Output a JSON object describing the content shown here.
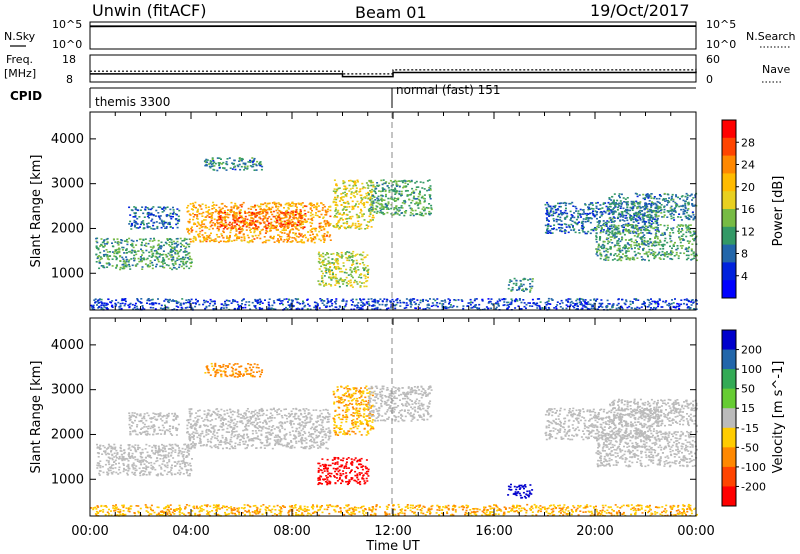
{
  "header": {
    "station": "Unwin (fitACF)",
    "beam": "Beam 01",
    "date": "19/Oct/2017"
  },
  "nsky": {
    "label": "N.Sky",
    "right_label": "N.Search",
    "left_ticks": [
      "10^5",
      "10^0"
    ],
    "right_ticks": [
      "10^5",
      "10^0"
    ]
  },
  "freq": {
    "label_line1": "Freq.",
    "label_line2": "[MHz]",
    "left_ticks": [
      "18",
      "8"
    ],
    "right_ticks": [
      "60",
      "0"
    ],
    "right_label": "Nave"
  },
  "cpid": {
    "label": "CPID",
    "segments": [
      {
        "name": "themis 3300",
        "start_hr": 0,
        "end_hr": 12
      },
      {
        "name": "normal (fast) 151",
        "start_hr": 12,
        "end_hr": 24
      }
    ]
  },
  "time_axis": {
    "ticks": [
      "00:00",
      "04:00",
      "08:00",
      "12:00",
      "16:00",
      "20:00",
      "00:00"
    ],
    "label": "Time UT"
  },
  "power_panel": {
    "ylabel": "Slant Range [km]",
    "yticks": [
      "4000",
      "3000",
      "2000",
      "1000"
    ],
    "colorbar_label": "Power [dB]",
    "colorbar_ticks": [
      "28",
      "24",
      "20",
      "16",
      "12",
      "8",
      "4"
    ],
    "colorbar_colors": [
      "#ff0000",
      "#ff4400",
      "#ff8800",
      "#ffbb00",
      "#e8d020",
      "#77bb44",
      "#339966",
      "#2266aa",
      "#0022dd",
      "#0000ff"
    ]
  },
  "velocity_panel": {
    "ylabel": "Slant Range [km]",
    "yticks": [
      "4000",
      "3000",
      "2000",
      "1000"
    ],
    "colorbar_label": "Velocity [m s^-1]",
    "colorbar_ticks": [
      "200",
      "100",
      "50",
      "15",
      "-15",
      "-50",
      "-100",
      "-200"
    ],
    "colorbar_colors": [
      "#0000cc",
      "#2266aa",
      "#33aa55",
      "#66cc33",
      "#bbbbbb",
      "#ffcc00",
      "#ff8800",
      "#ff4400",
      "#ff0000"
    ]
  },
  "chart_data": [
    {
      "type": "line",
      "title": "N.Sky",
      "x": [
        0,
        12,
        24
      ],
      "series": [
        {
          "name": "N.Sky",
          "values": [
            0.9,
            1.0,
            0.95
          ]
        }
      ],
      "ylim": [
        0,
        5
      ]
    },
    {
      "type": "line",
      "title": "Freq.",
      "x": [
        0,
        10,
        12,
        24
      ],
      "series": [
        {
          "name": "Freq.",
          "values": [
            11,
            10,
            11.5,
            12
          ]
        },
        {
          "name": "Nave",
          "values": [
            12,
            11,
            12.5,
            13
          ]
        }
      ],
      "ylim": [
        8,
        18
      ]
    },
    {
      "type": "heatmap",
      "title": "Power [dB]",
      "xlabel": "Time UT",
      "ylabel": "Slant Range [km]",
      "xlim": [
        0,
        24
      ],
      "ylim": [
        180,
        4600
      ],
      "patches": [
        {
          "t0": 0.2,
          "t1": 4.0,
          "r0": 1100,
          "r1": 1800,
          "value": 12
        },
        {
          "t0": 1.5,
          "t1": 3.5,
          "r0": 2000,
          "r1": 2500,
          "value": 8
        },
        {
          "t0": 3.8,
          "t1": 9.5,
          "r0": 1700,
          "r1": 2600,
          "value": 22
        },
        {
          "t0": 5.0,
          "t1": 8.5,
          "r0": 2000,
          "r1": 2400,
          "value": 26
        },
        {
          "t0": 4.5,
          "t1": 6.8,
          "r0": 3300,
          "r1": 3600,
          "value": 10
        },
        {
          "t0": 9.6,
          "t1": 11.2,
          "r0": 2000,
          "r1": 3100,
          "value": 18
        },
        {
          "t0": 9.0,
          "t1": 11.0,
          "r0": 700,
          "r1": 1500,
          "value": 16
        },
        {
          "t0": 11.0,
          "t1": 13.5,
          "r0": 2300,
          "r1": 3100,
          "value": 12
        },
        {
          "t0": 16.5,
          "t1": 17.5,
          "r0": 600,
          "r1": 900,
          "value": 10
        },
        {
          "t0": 18.0,
          "t1": 22.5,
          "r0": 1900,
          "r1": 2600,
          "value": 8
        },
        {
          "t0": 20.0,
          "t1": 24.0,
          "r0": 1300,
          "r1": 2100,
          "value": 12
        },
        {
          "t0": 20.5,
          "t1": 24.0,
          "r0": 2200,
          "r1": 2800,
          "value": 10
        },
        {
          "t0": 0.0,
          "t1": 24.0,
          "r0": 200,
          "r1": 450,
          "value": 6
        }
      ]
    },
    {
      "type": "heatmap",
      "title": "Velocity [m s^-1]",
      "xlabel": "Time UT",
      "ylabel": "Slant Range [km]",
      "xlim": [
        0,
        24
      ],
      "ylim": [
        180,
        4600
      ],
      "patches": [
        {
          "t0": 0.2,
          "t1": 4.0,
          "r0": 1100,
          "r1": 1800,
          "value": 0
        },
        {
          "t0": 1.5,
          "t1": 3.5,
          "r0": 2000,
          "r1": 2500,
          "value": 0
        },
        {
          "t0": 3.8,
          "t1": 9.5,
          "r0": 1700,
          "r1": 2600,
          "value": 0
        },
        {
          "t0": 4.5,
          "t1": 6.8,
          "r0": 3300,
          "r1": 3600,
          "value": -40
        },
        {
          "t0": 9.6,
          "t1": 11.2,
          "r0": 2000,
          "r1": 3100,
          "value": -30
        },
        {
          "t0": 9.0,
          "t1": 11.0,
          "r0": 900,
          "r1": 1500,
          "value": -200
        },
        {
          "t0": 11.0,
          "t1": 13.5,
          "r0": 2300,
          "r1": 3100,
          "value": -5
        },
        {
          "t0": 16.5,
          "t1": 17.5,
          "r0": 600,
          "r1": 900,
          "value": 200
        },
        {
          "t0": 18.0,
          "t1": 22.5,
          "r0": 1900,
          "r1": 2600,
          "value": 0
        },
        {
          "t0": 20.0,
          "t1": 24.0,
          "r0": 1300,
          "r1": 2100,
          "value": 0
        },
        {
          "t0": 20.5,
          "t1": 24.0,
          "r0": 2200,
          "r1": 2800,
          "value": 0
        },
        {
          "t0": 0.0,
          "t1": 24.0,
          "r0": 200,
          "r1": 450,
          "value": -30
        }
      ]
    }
  ]
}
